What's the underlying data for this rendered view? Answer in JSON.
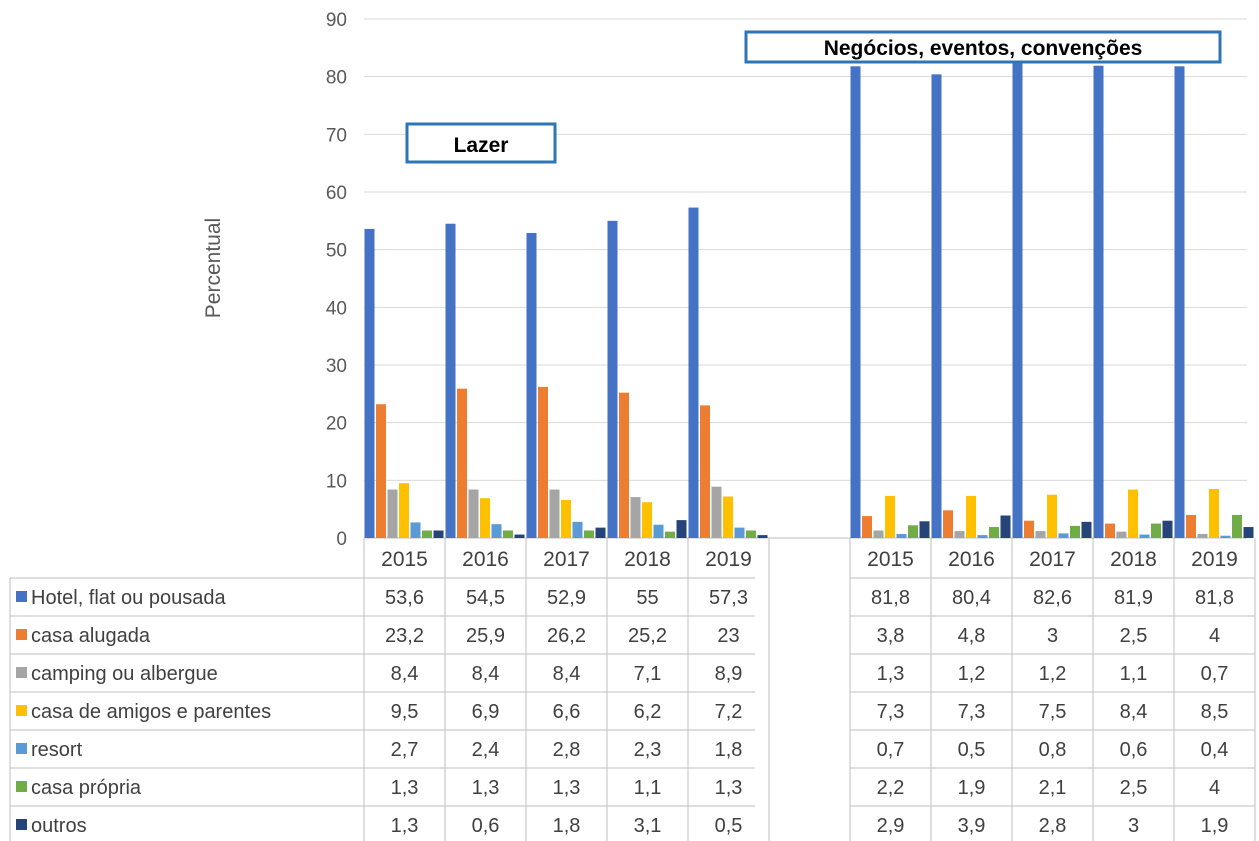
{
  "chart_data": {
    "type": "bar",
    "ylabel": "Percentual",
    "ylim": [
      0,
      90
    ],
    "yticks": [
      0,
      10,
      20,
      30,
      40,
      50,
      60,
      70,
      80,
      90
    ],
    "grid": true,
    "groups": [
      {
        "label": "Lazer",
        "categories": [
          "2015",
          "2016",
          "2017",
          "2018",
          "2019"
        ],
        "series": [
          {
            "name": "Hotel, flat ou pousada",
            "values": [
              53.6,
              54.5,
              52.9,
              55,
              57.3
            ]
          },
          {
            "name": "casa alugada",
            "values": [
              23.2,
              25.9,
              26.2,
              25.2,
              23
            ]
          },
          {
            "name": "camping ou albergue",
            "values": [
              8.4,
              8.4,
              8.4,
              7.1,
              8.9
            ]
          },
          {
            "name": "casa de amigos e parentes",
            "values": [
              9.5,
              6.9,
              6.6,
              6.2,
              7.2
            ]
          },
          {
            "name": "resort",
            "values": [
              2.7,
              2.4,
              2.8,
              2.3,
              1.8
            ]
          },
          {
            "name": "casa própria",
            "values": [
              1.3,
              1.3,
              1.3,
              1.1,
              1.3
            ]
          },
          {
            "name": "outros",
            "values": [
              1.3,
              0.6,
              1.8,
              3.1,
              0.5
            ]
          }
        ],
        "value_labels": [
          [
            "53,6",
            "54,5",
            "52,9",
            "55",
            "57,3"
          ],
          [
            "23,2",
            "25,9",
            "26,2",
            "25,2",
            "23"
          ],
          [
            "8,4",
            "8,4",
            "8,4",
            "7,1",
            "8,9"
          ],
          [
            "9,5",
            "6,9",
            "6,6",
            "6,2",
            "7,2"
          ],
          [
            "2,7",
            "2,4",
            "2,8",
            "2,3",
            "1,8"
          ],
          [
            "1,3",
            "1,3",
            "1,3",
            "1,1",
            "1,3"
          ],
          [
            "1,3",
            "0,6",
            "1,8",
            "3,1",
            "0,5"
          ]
        ]
      },
      {
        "label": "Negócios, eventos, convenções",
        "categories": [
          "2015",
          "2016",
          "2017",
          "2018",
          "2019"
        ],
        "series": [
          {
            "name": "Hotel, flat ou pousada",
            "values": [
              81.8,
              80.4,
              82.6,
              81.9,
              81.8
            ]
          },
          {
            "name": "casa alugada",
            "values": [
              3.8,
              4.8,
              3,
              2.5,
              4
            ]
          },
          {
            "name": "camping ou albergue",
            "values": [
              1.3,
              1.2,
              1.2,
              1.1,
              0.7
            ]
          },
          {
            "name": "casa de amigos e parentes",
            "values": [
              7.3,
              7.3,
              7.5,
              8.4,
              8.5
            ]
          },
          {
            "name": "resort",
            "values": [
              0.7,
              0.5,
              0.8,
              0.6,
              0.4
            ]
          },
          {
            "name": "casa própria",
            "values": [
              2.2,
              1.9,
              2.1,
              2.5,
              4
            ]
          },
          {
            "name": "outros",
            "values": [
              2.9,
              3.9,
              2.8,
              3,
              1.9
            ]
          }
        ],
        "value_labels": [
          [
            "81,8",
            "80,4",
            "82,6",
            "81,9",
            "81,8"
          ],
          [
            "3,8",
            "4,8",
            "3",
            "2,5",
            "4"
          ],
          [
            "1,3",
            "1,2",
            "1,2",
            "1,1",
            "0,7"
          ],
          [
            "7,3",
            "7,3",
            "7,5",
            "8,4",
            "8,5"
          ],
          [
            "0,7",
            "0,5",
            "0,8",
            "0,6",
            "0,4"
          ],
          [
            "2,2",
            "1,9",
            "2,1",
            "2,5",
            "4"
          ],
          [
            "2,9",
            "3,9",
            "2,8",
            "3",
            "1,9"
          ]
        ]
      }
    ],
    "series_colors": [
      "#4472C4",
      "#ED7D31",
      "#A5A5A5",
      "#FFC000",
      "#5B9BD5",
      "#70AD47",
      "#264478"
    ],
    "legend_position": "data-table"
  }
}
